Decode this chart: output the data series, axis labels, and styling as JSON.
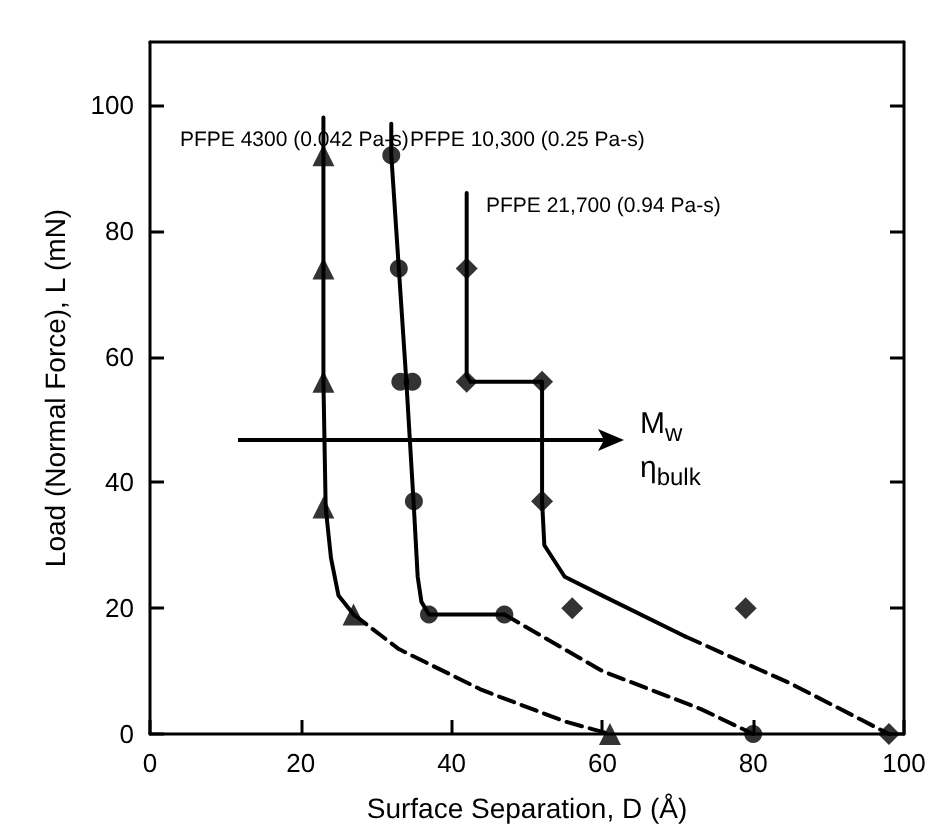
{
  "chart_data": {
    "type": "line",
    "xlabel": "Surface Separation, D (Å)",
    "ylabel": "Load (Normal Force), L (mN)",
    "xlim": [
      0,
      100
    ],
    "xticks": [
      0,
      20,
      40,
      60,
      80,
      100
    ],
    "ylim": [
      0,
      110
    ],
    "yticks": [
      0,
      20,
      40,
      60,
      80,
      100
    ],
    "grid": false,
    "annotations": [
      "PFPE 4300 (0.042 Pa-s)",
      "PFPE 10,300 (0.25 Pa-s)",
      "PFPE 21,700 (0.94 Pa-s)",
      "M$_{w}$",
      "η$_{bulk}$"
    ],
    "series": [
      {
        "color": "#000000",
        "marker": "none",
        "line_style": "solid",
        "x": [
          23,
          23,
          23,
          23,
          23.3,
          24,
          25,
          27
        ],
        "values": [
          98,
          92,
          74,
          56,
          36,
          28,
          22,
          19
        ]
      },
      {
        "color": "#000000",
        "marker": "none",
        "line_style": "dashed",
        "x": [
          27,
          33,
          44,
          55,
          61
        ],
        "values": [
          19,
          13.5,
          7,
          2,
          0
        ]
      },
      {
        "type": "scatter",
        "color": "#000000",
        "marker": "triangle",
        "x": [
          23,
          23,
          23,
          23,
          27,
          61
        ],
        "values": [
          92,
          74,
          56,
          36,
          19,
          0
        ]
      },
      {
        "color": "#000000",
        "marker": "none",
        "line_style": "solid",
        "x": [
          32,
          32,
          33,
          34,
          35,
          35.5,
          36,
          37,
          47
        ],
        "values": [
          97,
          92,
          74,
          56,
          36,
          25,
          21,
          19,
          19
        ]
      },
      {
        "color": "#000000",
        "marker": "none",
        "line_style": "dashed",
        "x": [
          47,
          60,
          73,
          80
        ],
        "values": [
          19,
          10,
          4,
          0
        ]
      },
      {
        "type": "scatter",
        "color": "#000000",
        "marker": "circle",
        "x": [
          32,
          33,
          33.2,
          34.8,
          35,
          37,
          47,
          80
        ],
        "values": [
          92,
          74,
          56,
          56,
          37,
          19,
          19,
          0
        ]
      },
      {
        "color": "#000000",
        "marker": "none",
        "line_style": "solid",
        "x": [
          42,
          42,
          42,
          42.5,
          52,
          52,
          52.3,
          55,
          60,
          71
        ],
        "values": [
          86,
          74,
          57,
          56,
          56,
          37,
          30,
          25,
          22,
          15.5
        ]
      },
      {
        "color": "#000000",
        "marker": "none",
        "line_style": "dashed",
        "x": [
          71,
          85,
          98
        ],
        "values": [
          15.5,
          8,
          0
        ]
      },
      {
        "type": "scatter",
        "color": "#000000",
        "marker": "diamond",
        "x": [
          42,
          42,
          52,
          52,
          56,
          79,
          98
        ],
        "values": [
          74,
          56,
          56,
          37,
          20,
          20,
          0
        ]
      }
    ]
  }
}
